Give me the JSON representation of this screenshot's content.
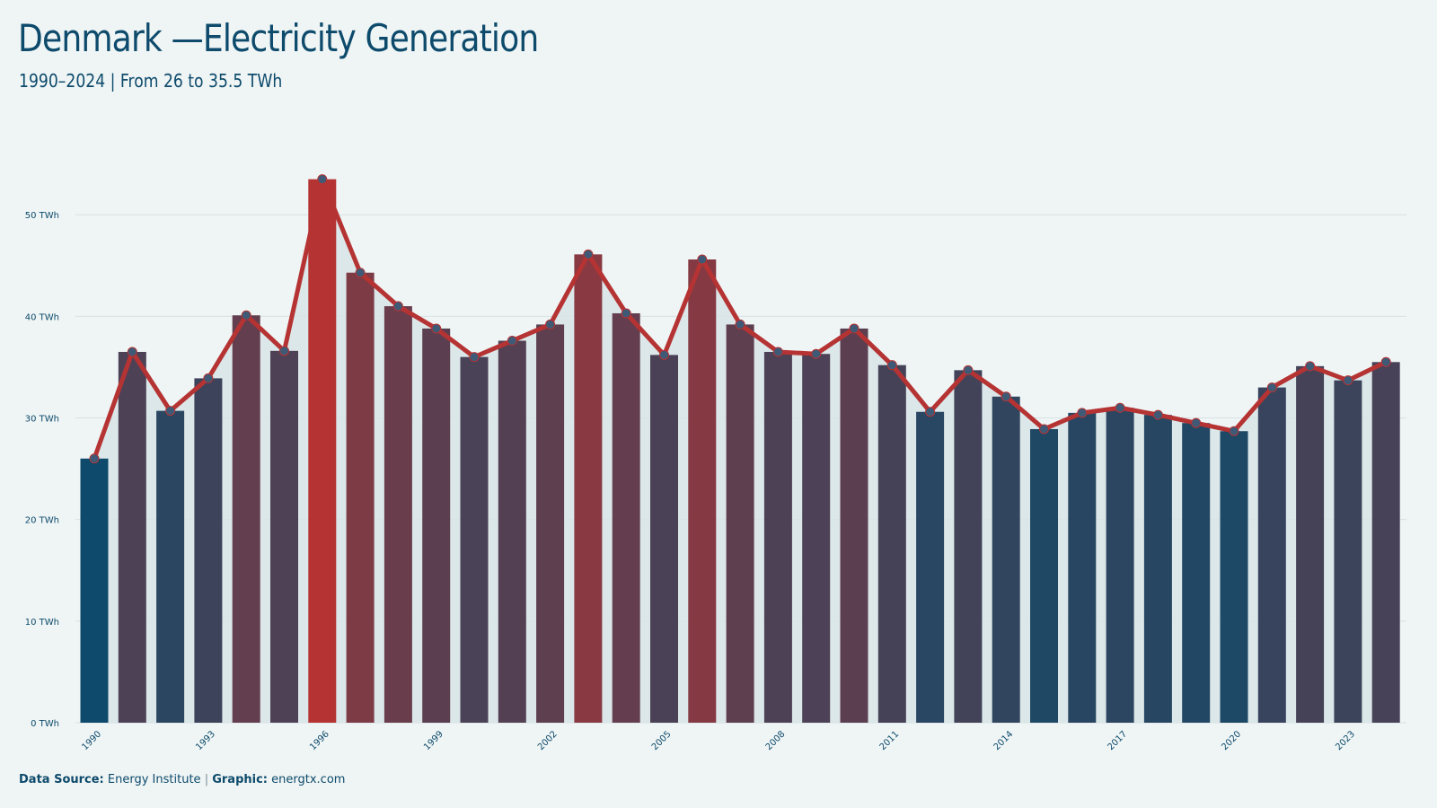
{
  "header": {
    "title": "Denmark —Electricity Generation",
    "subtitle": "1990–2024 | From 26 to 35.5 TWh"
  },
  "footer": {
    "source_label": "Data Source:",
    "source_value": "Energy Institute",
    "separator": "|",
    "graphic_label": "Graphic:",
    "graphic_value": "energtx.com"
  },
  "colors": {
    "background": "#eff5f5",
    "low": "#0d4a6b",
    "high": "#b53333",
    "line": "#b53333",
    "marker": "#3f5a76",
    "area": "#d8e4e6",
    "grid": "#d7e0e3",
    "text": "#0d4a6b"
  },
  "chart_data": {
    "type": "bar",
    "x": [
      1990,
      1991,
      1992,
      1993,
      1994,
      1995,
      1996,
      1997,
      1998,
      1999,
      2000,
      2001,
      2002,
      2003,
      2004,
      2005,
      2006,
      2007,
      2008,
      2009,
      2010,
      2011,
      2012,
      2013,
      2014,
      2015,
      2016,
      2017,
      2018,
      2019,
      2020,
      2021,
      2022,
      2023,
      2024
    ],
    "values": [
      26.0,
      36.5,
      30.7,
      33.9,
      40.1,
      36.6,
      53.5,
      44.3,
      41.0,
      38.8,
      36.0,
      37.6,
      39.2,
      46.1,
      40.3,
      36.2,
      45.6,
      39.2,
      36.5,
      36.3,
      38.8,
      35.2,
      30.6,
      34.7,
      32.1,
      28.9,
      30.5,
      31.0,
      30.3,
      29.5,
      28.7,
      33.0,
      35.1,
      33.7,
      35.5
    ],
    "series_overlay": "line with markers",
    "x_tick_labels": [
      "1990",
      "1993",
      "1996",
      "1999",
      "2002",
      "2005",
      "2008",
      "2011",
      "2014",
      "2017",
      "2020",
      "2023"
    ],
    "y_tick_labels": [
      "0 TWh",
      "10 TWh",
      "20 TWh",
      "30 TWh",
      "40 TWh",
      "50 TWh"
    ],
    "y_ticks": [
      0,
      10,
      20,
      30,
      40,
      50
    ],
    "ylim": [
      0,
      57
    ],
    "unit": "TWh",
    "grid": true
  }
}
